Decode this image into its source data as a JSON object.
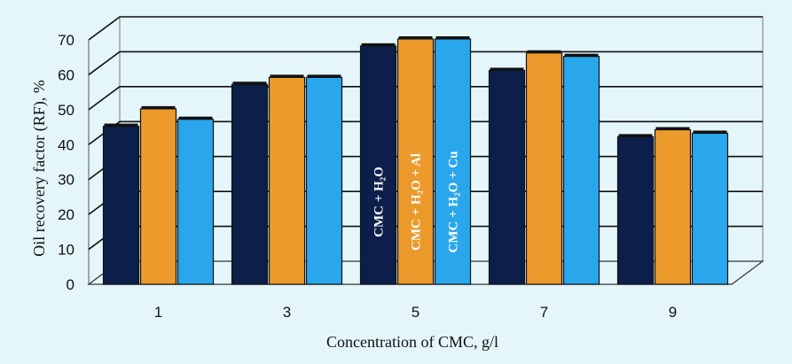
{
  "chart_data": {
    "type": "bar",
    "categories": [
      "1",
      "3",
      "5",
      "7",
      "9"
    ],
    "series": [
      {
        "name": "CMC + H₂O",
        "values": [
          45,
          57,
          68,
          61,
          42
        ],
        "color": "#0b1f4a",
        "label_color": "#ffffff"
      },
      {
        "name": "CMC + H₂O + Al",
        "values": [
          50,
          59,
          70,
          66,
          44
        ],
        "color": "#ec9a2b",
        "label_color": "#ffffff"
      },
      {
        "name": "CMC + H₂O + Cu",
        "values": [
          47,
          59,
          70,
          65,
          43
        ],
        "color": "#2aa7ec",
        "label_color": "#ffffff"
      }
    ],
    "xlabel": "Concentration of CMC, g/l",
    "ylabel": "Oil recovery factor (RF), %",
    "ylim": [
      0,
      70
    ],
    "yticks": [
      0,
      10,
      20,
      30,
      40,
      50,
      60,
      70
    ],
    "grid": true,
    "legend": "inside-bars"
  }
}
